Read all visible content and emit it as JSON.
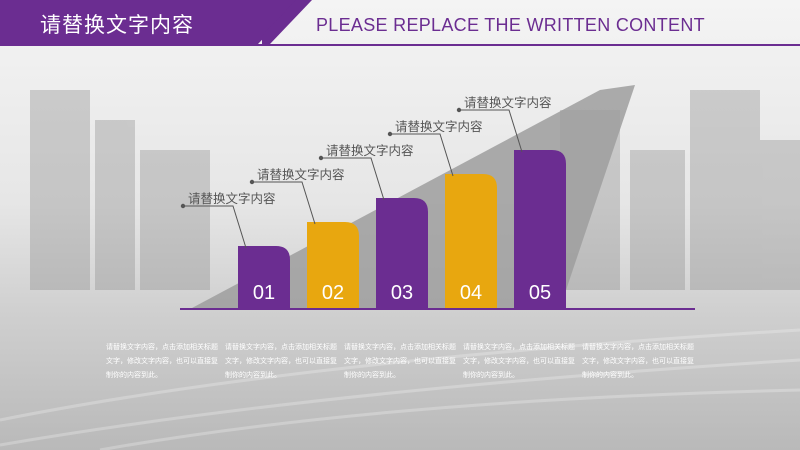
{
  "header": {
    "title_zh": "请替换文字内容",
    "title_en": "PLEASE REPLACE THE WRITTEN CONTENT"
  },
  "colors": {
    "purple": "#6b2d91",
    "gold": "#e8a70f",
    "shadow": "#9e9e9e"
  },
  "steps": [
    {
      "number": "01",
      "label": "请替换文字内容",
      "color": "purple",
      "level": 1,
      "description": "请替换文字内容，点击添加相关标题文字，修改文字内容，也可以直接复制你的内容到此。"
    },
    {
      "number": "02",
      "label": "请替换文字内容",
      "color": "gold",
      "level": 2,
      "description": "请替换文字内容，点击添加相关标题文字，修改文字内容，也可以直接复制你的内容到此。"
    },
    {
      "number": "03",
      "label": "请替换文字内容",
      "color": "purple",
      "level": 3,
      "description": "请替换文字内容，点击添加相关标题文字，修改文字内容，也可以直接复制你的内容到此。"
    },
    {
      "number": "04",
      "label": "请替换文字内容",
      "color": "gold",
      "level": 4,
      "description": "请替换文字内容，点击添加相关标题文字，修改文字内容，也可以直接复制你的内容到此。"
    },
    {
      "number": "05",
      "label": "请替换文字内容",
      "color": "purple",
      "level": 5,
      "description": "请替换文字内容，点击添加相关标题文字，修改文字内容，也可以直接复制你的内容到此。"
    }
  ]
}
